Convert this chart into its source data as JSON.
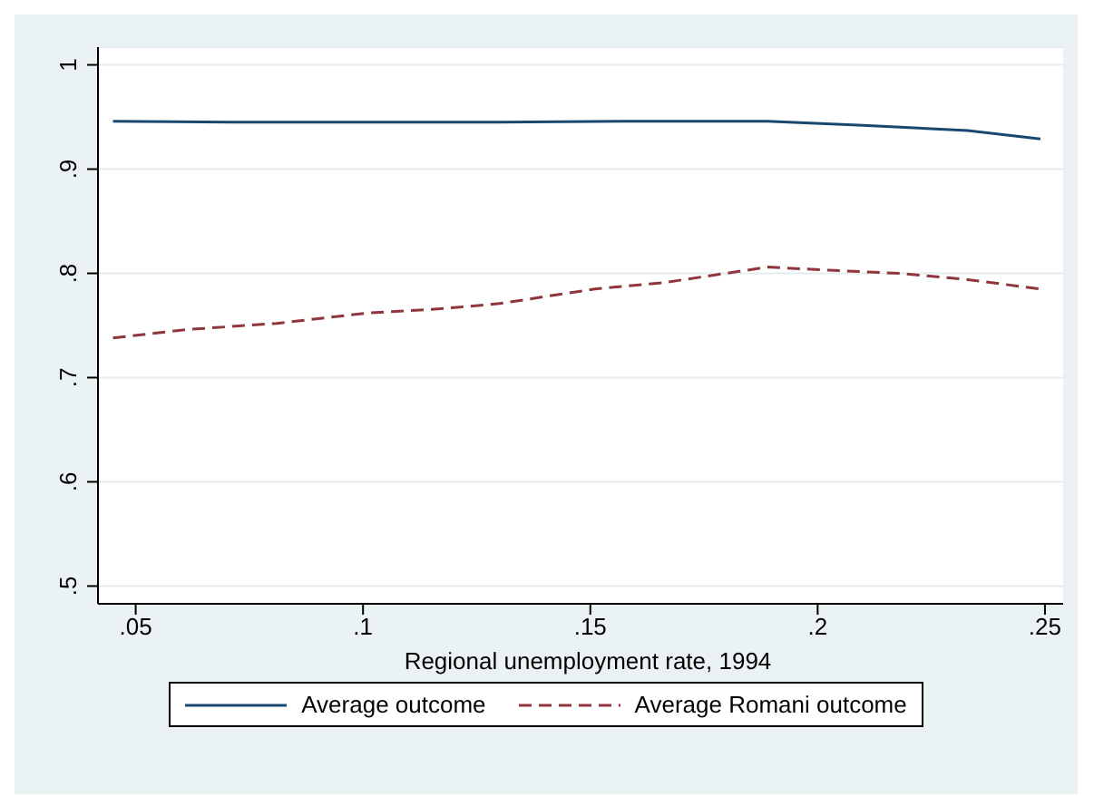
{
  "chart_data": {
    "type": "line",
    "xlabel": "Regional unemployment rate, 1994",
    "xlim": [
      0.0417,
      0.254
    ],
    "xticks": [
      {
        "value": 0.05,
        "label": ".05"
      },
      {
        "value": 0.1,
        "label": ".1"
      },
      {
        "value": 0.15,
        "label": ".15"
      },
      {
        "value": 0.2,
        "label": ".2"
      },
      {
        "value": 0.25,
        "label": ".25"
      }
    ],
    "ylim": [
      0.483,
      1.017
    ],
    "yticks": [
      {
        "value": 0.5,
        "label": ".5"
      },
      {
        "value": 0.6,
        "label": ".6"
      },
      {
        "value": 0.7,
        "label": ".7"
      },
      {
        "value": 0.8,
        "label": ".8"
      },
      {
        "value": 0.9,
        "label": ".9"
      },
      1
    ],
    "grid": "y",
    "legend": "bottom",
    "marker": "none",
    "series": [
      {
        "name": "Average outcome",
        "color": "#1a476f",
        "line_style": "solid",
        "x": [
          0.045,
          0.073,
          0.119,
          0.13,
          0.157,
          0.189,
          0.21,
          0.233,
          0.249
        ],
        "values": [
          0.946,
          0.945,
          0.945,
          0.945,
          0.946,
          0.946,
          0.942,
          0.937,
          0.929
        ]
      },
      {
        "name": "Average Romani outcome",
        "color": "#90353b",
        "line_style": "dashed",
        "x": [
          0.045,
          0.061,
          0.081,
          0.101,
          0.117,
          0.13,
          0.136,
          0.151,
          0.166,
          0.189,
          0.2025,
          0.218,
          0.233,
          0.249
        ],
        "values": [
          0.738,
          0.746,
          0.752,
          0.762,
          0.766,
          0.771,
          0.775,
          0.785,
          0.791,
          0.806,
          0.803,
          0.8,
          0.794,
          0.785
        ]
      }
    ]
  }
}
